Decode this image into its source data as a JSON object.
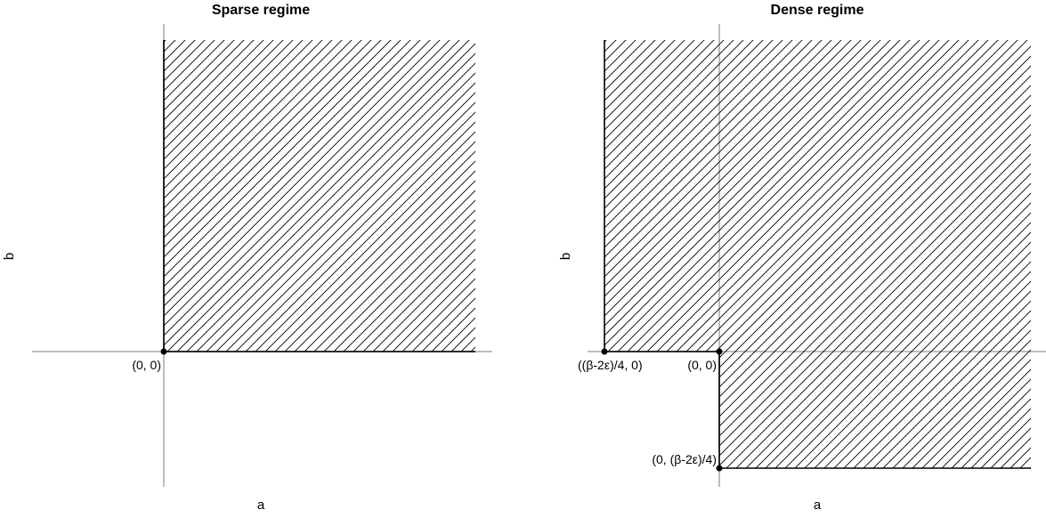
{
  "panels": [
    {
      "title": "Sparse regime",
      "xlabel": "a",
      "ylabel": "b",
      "points": [
        {
          "label": "(0, 0)"
        }
      ]
    },
    {
      "title": "Dense regime",
      "xlabel": "a",
      "ylabel": "b",
      "points": [
        {
          "label": "((β-2ε)/4, 0)"
        },
        {
          "label": "(0, 0)"
        },
        {
          "label": "(0, (β-2ε)/4)"
        }
      ]
    }
  ],
  "colors": {
    "axis": "#bdbdbd",
    "boundary": "#000000",
    "hatch": "#000000"
  }
}
